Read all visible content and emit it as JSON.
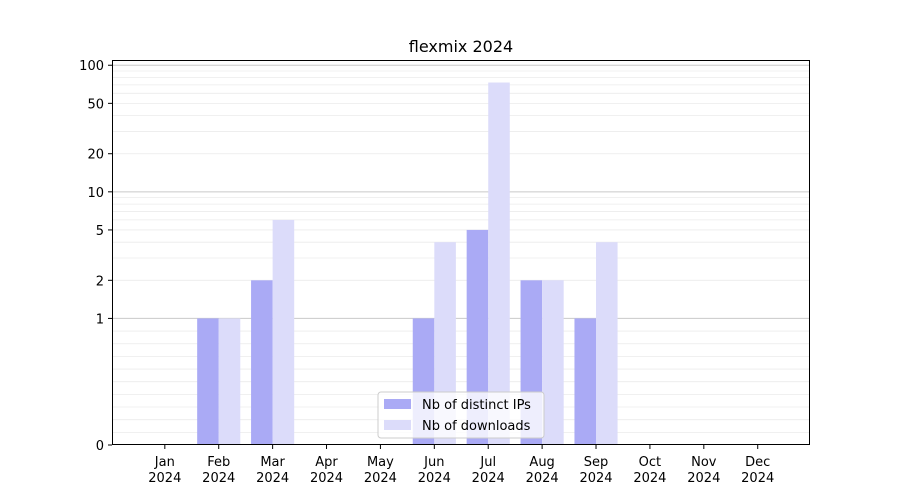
{
  "chart_data": {
    "type": "bar",
    "title": "flexmix 2024",
    "xlabel": "",
    "ylabel": "",
    "categories": [
      [
        "Jan",
        "2024"
      ],
      [
        "Feb",
        "2024"
      ],
      [
        "Mar",
        "2024"
      ],
      [
        "Apr",
        "2024"
      ],
      [
        "May",
        "2024"
      ],
      [
        "Jun",
        "2024"
      ],
      [
        "Jul",
        "2024"
      ],
      [
        "Aug",
        "2024"
      ],
      [
        "Sep",
        "2024"
      ],
      [
        "Oct",
        "2024"
      ],
      [
        "Nov",
        "2024"
      ],
      [
        "Dec",
        "2024"
      ]
    ],
    "series": [
      {
        "name": "Nb of distinct IPs",
        "color": "#aaaaf5",
        "values": [
          0,
          1,
          2,
          0,
          0,
          1,
          5,
          2,
          1,
          0,
          0,
          0
        ]
      },
      {
        "name": "Nb of downloads",
        "color": "#dcdcfa",
        "values": [
          0,
          1,
          6,
          0,
          0,
          4,
          73,
          2,
          4,
          0,
          0,
          0
        ]
      }
    ],
    "yscale": "symlog",
    "ylim": [
      0,
      110
    ],
    "yticks": [
      0,
      1,
      2,
      5,
      10,
      20,
      50,
      100
    ],
    "grid": true,
    "legend": "lower-center"
  }
}
